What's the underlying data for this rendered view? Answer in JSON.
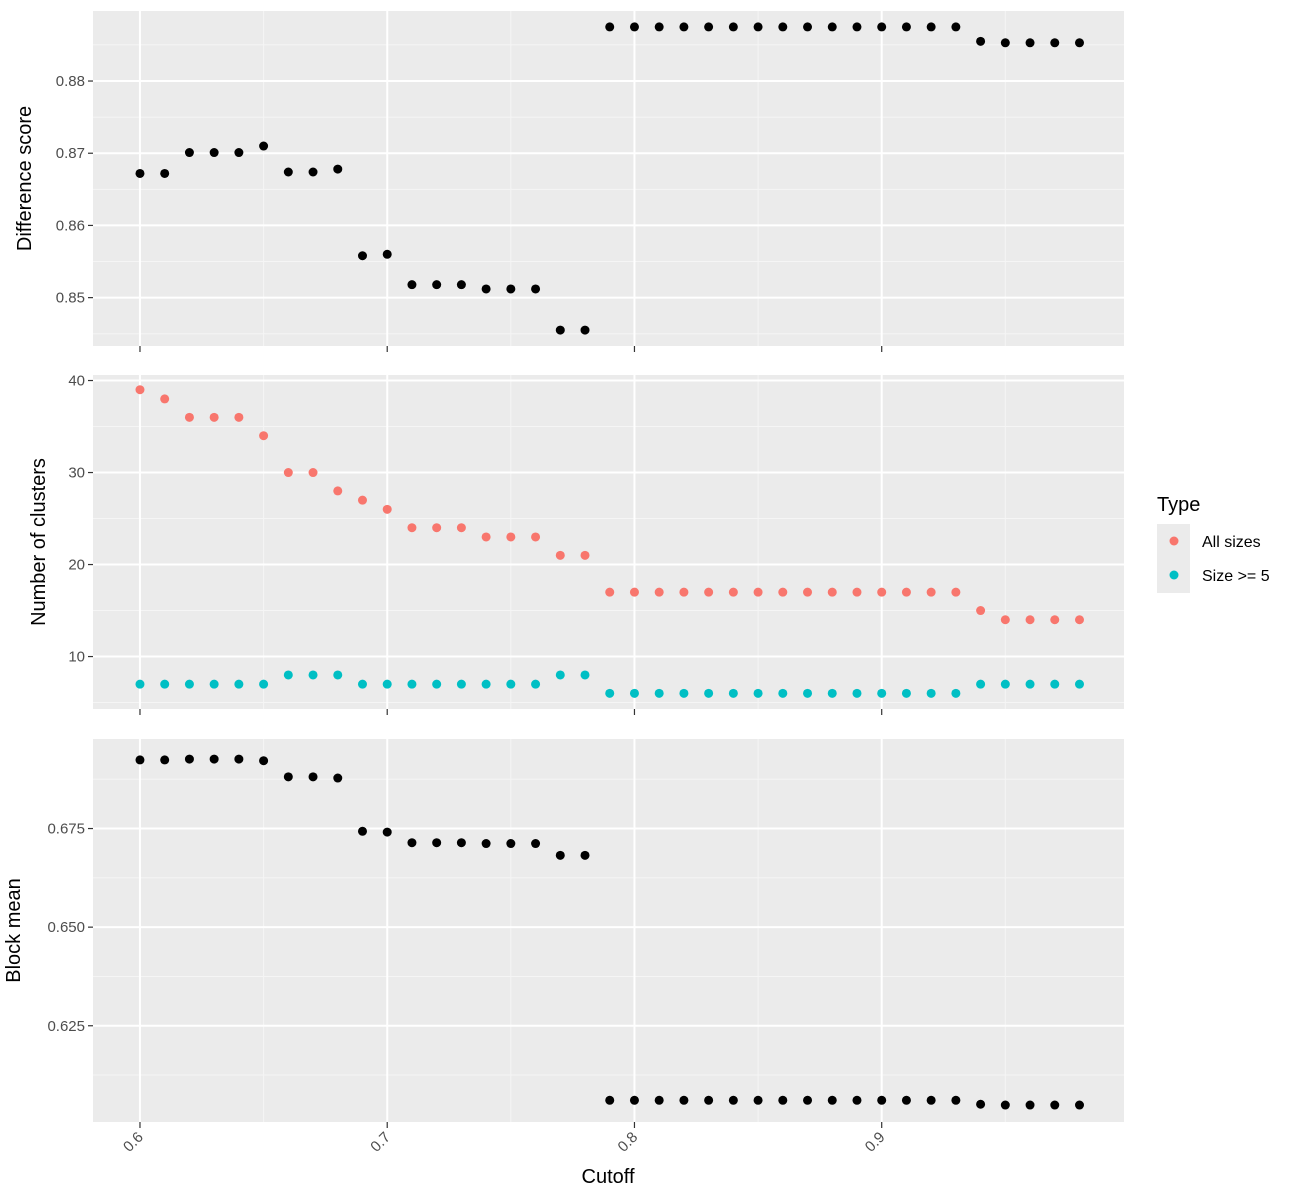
{
  "chart_data": {
    "type": "scatter",
    "xlabel": "Cutoff",
    "x_ticks": [
      "0.6",
      "0.7",
      "0.8",
      "0.9"
    ],
    "xlim": [
      0.581,
      0.998
    ],
    "legend": {
      "title": "Type",
      "placement": "right",
      "entries": [
        {
          "label": "All sizes",
          "color": "#F8766D"
        },
        {
          "label": "Size >= 5",
          "color": "#00BFC4"
        }
      ]
    },
    "x": [
      0.6,
      0.61,
      0.62,
      0.63,
      0.64,
      0.65,
      0.66,
      0.67,
      0.68,
      0.69,
      0.7,
      0.71,
      0.72,
      0.73,
      0.74,
      0.75,
      0.76,
      0.77,
      0.78,
      0.79,
      0.8,
      0.81,
      0.82,
      0.83,
      0.84,
      0.85,
      0.86,
      0.87,
      0.88,
      0.89,
      0.9,
      0.91,
      0.92,
      0.93,
      0.94,
      0.95,
      0.96,
      0.97,
      0.98
    ],
    "panels": [
      {
        "ylabel": "Difference score",
        "ylim": [
          0.8433,
          0.8897
        ],
        "y_ticks": [
          "0.85",
          "0.86",
          "0.87",
          "0.88"
        ],
        "series": [
          {
            "color": "#000000",
            "values": [
              0.8672,
              0.8672,
              0.8701,
              0.8701,
              0.8701,
              0.871,
              0.8674,
              0.8674,
              0.8678,
              0.8558,
              0.856,
              0.8518,
              0.8518,
              0.8518,
              0.8512,
              0.8512,
              0.8512,
              0.8455,
              0.8455,
              0.8875,
              0.8875,
              0.8875,
              0.8875,
              0.8875,
              0.8875,
              0.8875,
              0.8875,
              0.8875,
              0.8875,
              0.8875,
              0.8875,
              0.8875,
              0.8875,
              0.8875,
              0.8855,
              0.8853,
              0.8853,
              0.8853,
              0.8853
            ]
          }
        ]
      },
      {
        "ylabel": "Number of clusters",
        "ylim": [
          4.3,
          40.6
        ],
        "y_ticks": [
          "10",
          "20",
          "30",
          "40"
        ],
        "series": [
          {
            "name": "All sizes",
            "color": "#F8766D",
            "values": [
              39,
              38,
              36,
              36,
              36,
              34,
              30,
              30,
              28,
              27,
              26,
              24,
              24,
              24,
              23,
              23,
              23,
              21,
              21,
              17,
              17,
              17,
              17,
              17,
              17,
              17,
              17,
              17,
              17,
              17,
              17,
              17,
              17,
              17,
              15,
              14,
              14,
              14,
              14
            ]
          },
          {
            "name": "Size >= 5",
            "color": "#00BFC4",
            "values": [
              7,
              7,
              7,
              7,
              7,
              7,
              8,
              8,
              8,
              7,
              7,
              7,
              7,
              7,
              7,
              7,
              7,
              8,
              8,
              6,
              6,
              6,
              6,
              6,
              6,
              6,
              6,
              6,
              6,
              6,
              6,
              6,
              6,
              6,
              7,
              7,
              7,
              7,
              7
            ]
          }
        ]
      },
      {
        "ylabel": "Block mean",
        "ylim": [
          0.6006,
          0.6977
        ],
        "y_ticks": [
          "0.625",
          "0.650",
          "0.675"
        ],
        "series": [
          {
            "color": "#000000",
            "values": [
              0.6924,
              0.6924,
              0.6926,
              0.6926,
              0.6926,
              0.6922,
              0.6881,
              0.6881,
              0.6878,
              0.6743,
              0.6741,
              0.6714,
              0.6714,
              0.6714,
              0.6712,
              0.6712,
              0.6712,
              0.6682,
              0.6682,
              0.6061,
              0.6061,
              0.6061,
              0.6061,
              0.6061,
              0.6061,
              0.6061,
              0.6061,
              0.6061,
              0.6061,
              0.6061,
              0.6061,
              0.6061,
              0.6061,
              0.6061,
              0.6051,
              0.6049,
              0.6049,
              0.6049,
              0.6049
            ]
          }
        ]
      }
    ]
  }
}
